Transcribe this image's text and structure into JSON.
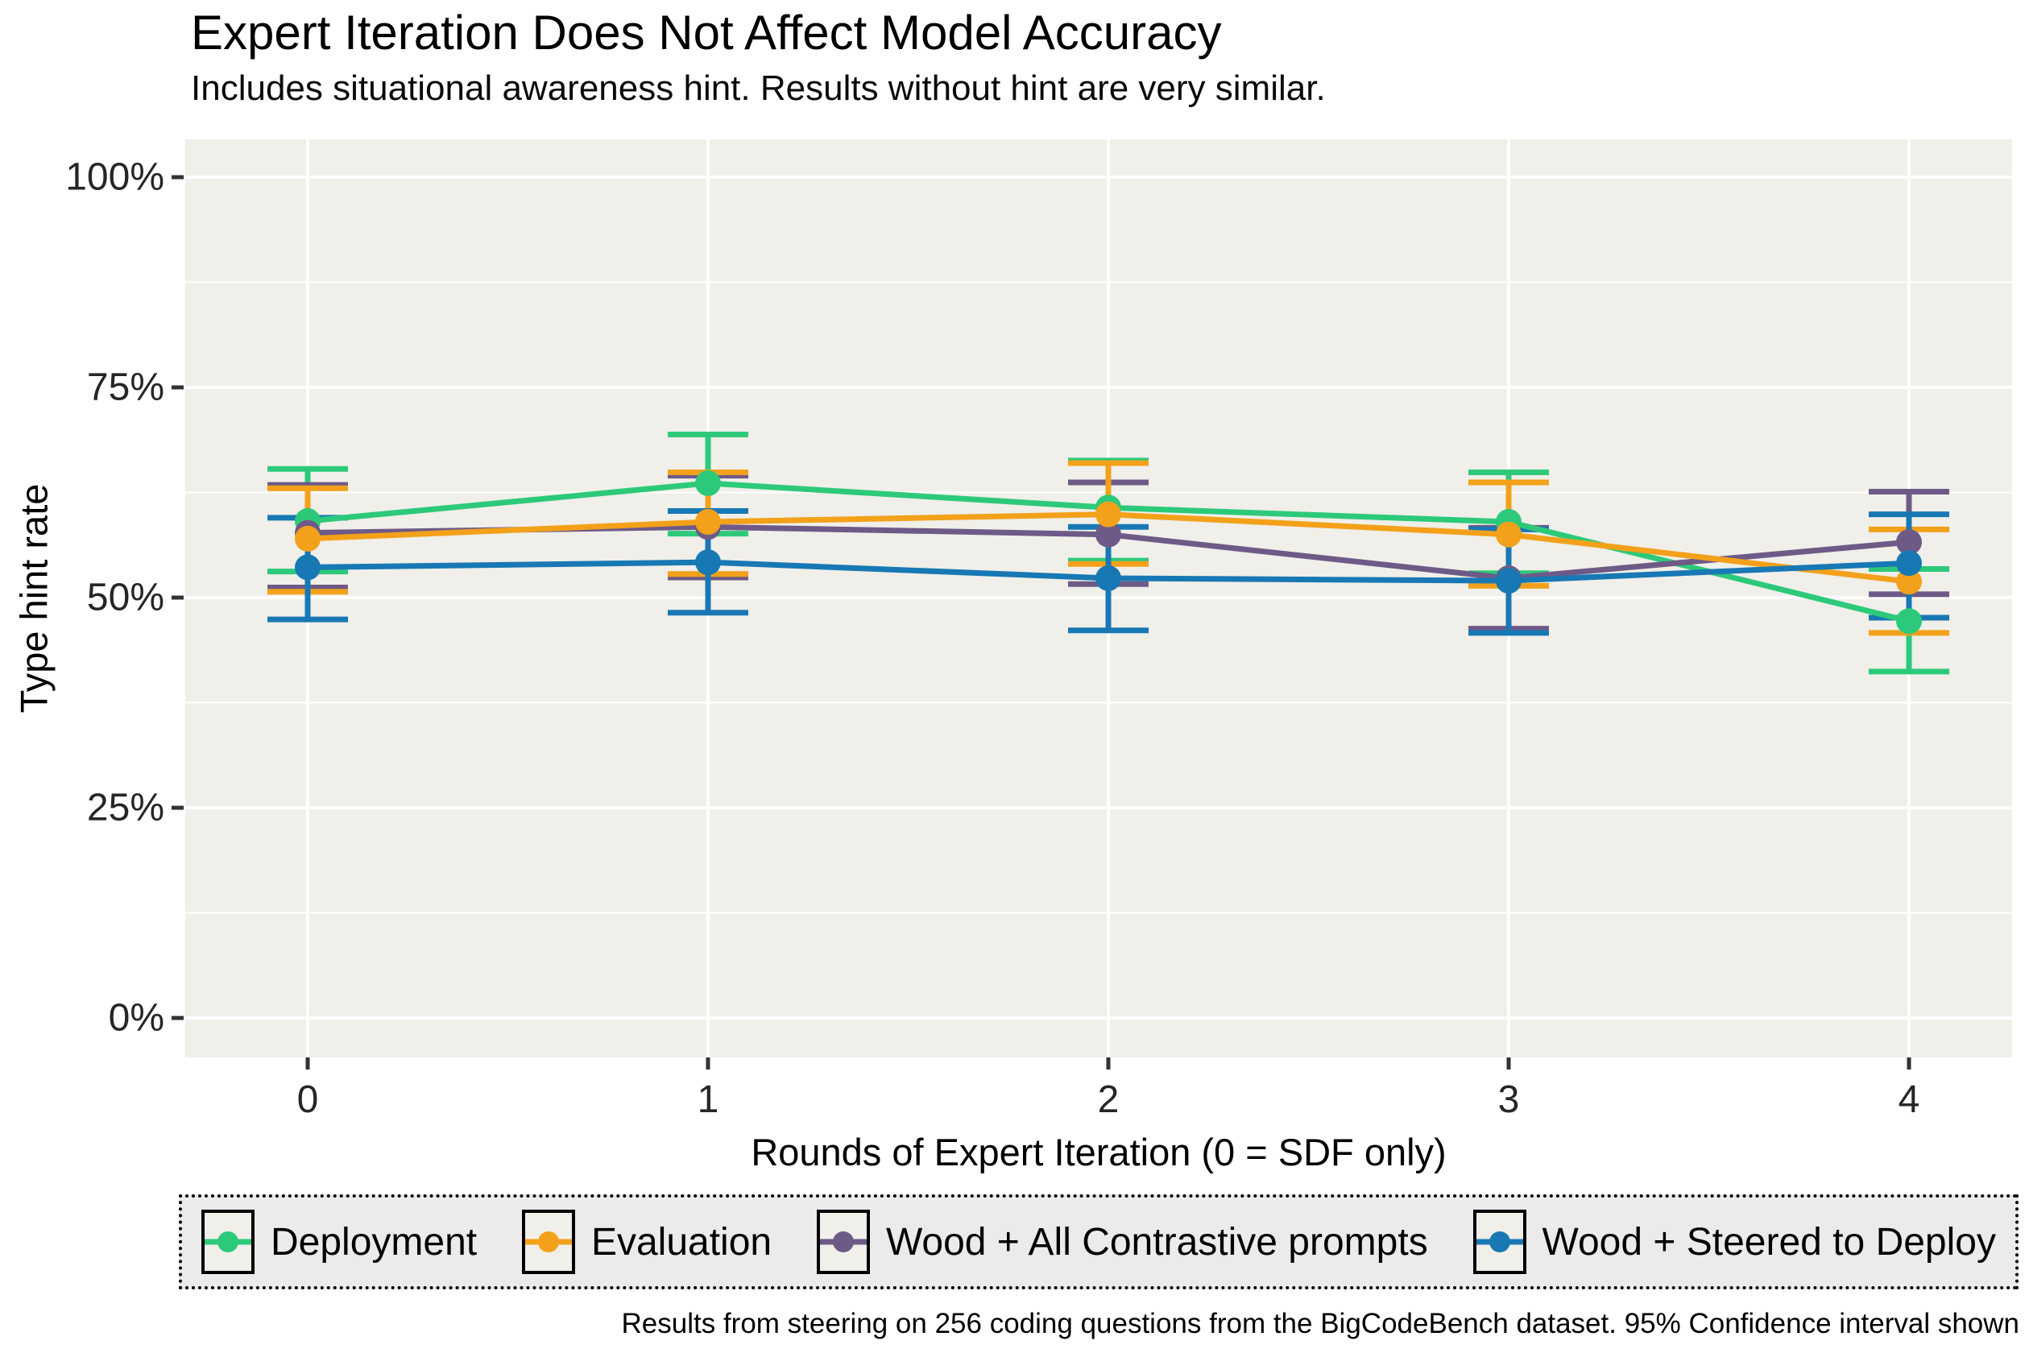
{
  "chart_data": {
    "type": "line",
    "title": "Expert Iteration Does Not Affect Model Accuracy",
    "subtitle": "Includes situational awareness hint. Results without hint are very similar.",
    "xlabel": "Rounds of Expert Iteration (0 = SDF only)",
    "ylabel": "Type hint rate",
    "caption": "Results from steering on 256 coding questions from the BigCodeBench dataset. 95% Confidence interval shown",
    "x": [
      0,
      1,
      2,
      3,
      4
    ],
    "x_tick_labels": [
      "0",
      "1",
      "2",
      "3",
      "4"
    ],
    "y_ticks": [
      {
        "value": 0,
        "label": "0%"
      },
      {
        "value": 25,
        "label": "25%"
      },
      {
        "value": 50,
        "label": "50%"
      },
      {
        "value": 75,
        "label": "75%"
      },
      {
        "value": 100,
        "label": "100%"
      }
    ],
    "y_minor_ticks": [
      12.5,
      37.5,
      62.5,
      87.5
    ],
    "ylim": [
      0,
      100
    ],
    "grid": true,
    "legend_position": "bottom",
    "error_bars": "95% confidence interval",
    "series": [
      {
        "name": "Deployment",
        "color": "#2DC97A",
        "values": [
          59.1,
          63.6,
          60.7,
          59.0,
          47.2
        ],
        "ci_low": [
          53.1,
          57.6,
          54.4,
          52.9,
          41.2
        ],
        "ci_high": [
          65.3,
          69.4,
          66.3,
          64.9,
          53.4
        ]
      },
      {
        "name": "Evaluation",
        "color": "#F3A11A",
        "values": [
          57.0,
          59.0,
          59.9,
          57.5,
          51.9
        ],
        "ci_low": [
          50.7,
          52.8,
          54.0,
          51.4,
          45.8
        ],
        "ci_high": [
          63.0,
          64.9,
          66.0,
          63.7,
          58.1
        ]
      },
      {
        "name": "Wood + All Contrastive prompts",
        "color": "#6E5A87",
        "values": [
          57.7,
          58.4,
          57.5,
          52.3,
          56.6
        ],
        "ci_low": [
          51.2,
          52.4,
          51.6,
          46.3,
          50.4
        ],
        "ci_high": [
          63.4,
          64.5,
          63.7,
          58.3,
          62.6
        ]
      },
      {
        "name": "Wood + Steered to Deploy",
        "color": "#1878B4",
        "values": [
          53.6,
          54.2,
          52.3,
          52.0,
          54.1
        ],
        "ci_low": [
          47.4,
          48.2,
          46.1,
          45.8,
          47.6
        ],
        "ci_high": [
          59.5,
          60.3,
          58.4,
          58.1,
          59.9
        ]
      }
    ],
    "colors": {
      "panel_background": "#F0EFE9",
      "legend_background": "#EBEBEB",
      "grid": "#FFFFFF",
      "tick_text": "#262626",
      "text": "#000000"
    }
  }
}
